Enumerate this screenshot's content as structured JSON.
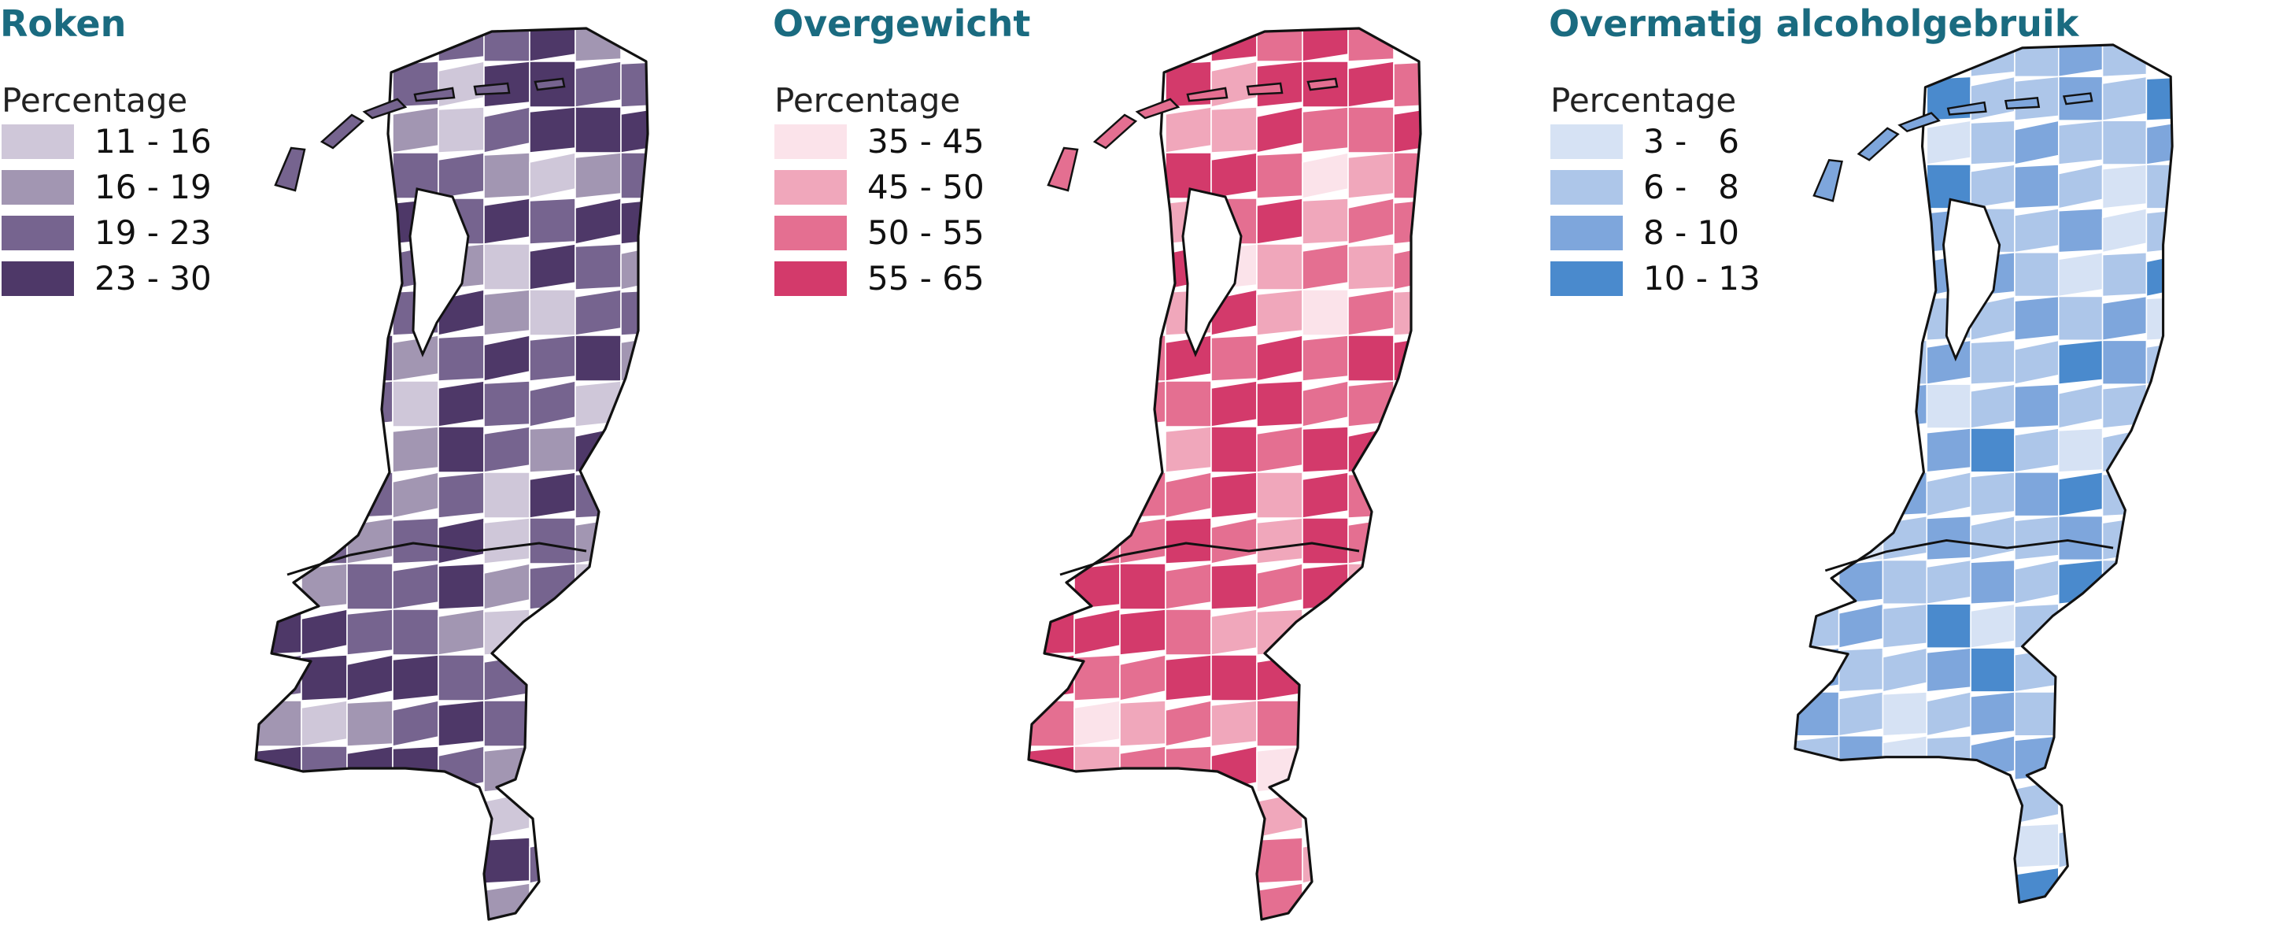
{
  "panels": [
    {
      "title": "Roken",
      "legend_heading": "Percentage",
      "title_color": "#1a6b80",
      "classes": [
        {
          "label": "11 - 16",
          "color": "#cfc7d9"
        },
        {
          "label": "16 - 19",
          "color": "#a296b2"
        },
        {
          "label": "19 - 23",
          "color": "#76648f"
        },
        {
          "label": "23 - 30",
          "color": "#4e3868"
        }
      ],
      "regions": [
        1,
        2,
        2,
        3,
        1,
        2,
        0,
        3,
        3,
        2,
        2,
        1,
        0,
        2,
        3,
        3,
        3,
        2,
        2,
        1,
        0,
        1,
        2,
        3,
        2,
        3,
        2,
        3,
        3,
        2,
        1,
        0,
        3,
        2,
        1,
        2,
        3,
        1,
        0,
        2,
        2,
        3,
        1,
        2,
        3,
        2,
        3,
        1,
        2,
        0,
        3,
        2,
        2,
        0,
        1,
        3,
        2,
        1,
        3,
        2,
        1,
        2,
        0,
        3,
        2,
        2,
        1,
        2,
        3,
        0,
        2,
        1
      ]
    },
    {
      "title": "Overgewicht",
      "legend_heading": "Percentage",
      "title_color": "#1a6b80",
      "classes": [
        {
          "label": "35 - 45",
          "color": "#fbe3ea"
        },
        {
          "label": "45 - 50",
          "color": "#f0a7bb"
        },
        {
          "label": "50 - 55",
          "color": "#e46f91"
        },
        {
          "label": "55 - 65",
          "color": "#d33a6b"
        }
      ],
      "regions": [
        3,
        3,
        2,
        3,
        2,
        3,
        1,
        3,
        3,
        3,
        2,
        1,
        1,
        3,
        2,
        2,
        3,
        3,
        3,
        2,
        0,
        1,
        2,
        1,
        2,
        3,
        1,
        2,
        2,
        3,
        0,
        1,
        2,
        1,
        2,
        1,
        3,
        1,
        0,
        2,
        1,
        2,
        3,
        2,
        3,
        2,
        3,
        3,
        2,
        2,
        3,
        3,
        2,
        2,
        1,
        3,
        2,
        3,
        3,
        2,
        2,
        3,
        1,
        3,
        2,
        2,
        2,
        3,
        2,
        1,
        3,
        2
      ]
    },
    {
      "title": "Overmatig alcoholgebruik",
      "legend_heading": "Percentage",
      "title_color": "#1a6b80",
      "classes": [
        {
          "label": "3 -   6",
          "color": "#d6e2f4"
        },
        {
          "label": "6 -   8",
          "color": "#adc6e9"
        },
        {
          "label": "8 - 10",
          "color": "#7ea6dc"
        },
        {
          "label": "10 - 13",
          "color": "#4a8acd"
        }
      ],
      "regions": [
        2,
        1,
        1,
        2,
        1,
        3,
        1,
        1,
        2,
        1,
        3,
        0,
        1,
        2,
        1,
        1,
        2,
        3,
        1,
        2,
        1,
        0,
        1,
        2,
        1,
        1,
        2,
        0,
        1,
        2,
        2,
        1,
        0,
        1,
        3,
        1,
        1,
        2,
        1,
        2,
        0,
        1,
        2,
        1,
        1,
        3,
        2,
        1,
        2,
        0,
        1,
        2,
        1,
        1,
        2,
        3,
        1,
        0,
        1,
        2,
        1,
        1,
        2,
        3,
        1,
        0,
        1,
        2,
        1,
        1,
        2,
        1
      ]
    }
  ]
}
